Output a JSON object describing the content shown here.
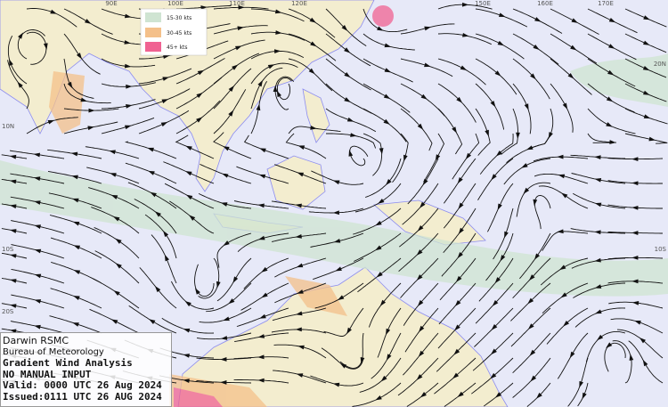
{
  "legend": {
    "items": [
      "15-30 kts",
      "30-45 kts",
      "45+ kts"
    ]
  },
  "grid": {
    "lon_labels": [
      "90E",
      "100E",
      "110E",
      "120E",
      "150E",
      "160E",
      "170E"
    ],
    "lat_labels_left": [
      "10N",
      "10S",
      "20S"
    ],
    "lat_labels_right": [
      "20N",
      "10S"
    ]
  },
  "info": {
    "centre": "Darwin RSMC",
    "agency": "Bureau of Meteorology",
    "product": "Gradient Wind Analysis",
    "note": "NO MANUAL INPUT",
    "valid": "Valid:  0000 UTC 26 Aug 2024",
    "issued": "Issued:0111 UTC 26 AUG 2024"
  }
}
